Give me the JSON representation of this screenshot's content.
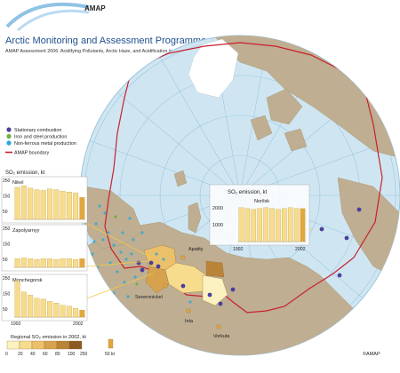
{
  "header": {
    "logo_text": "AMAP",
    "title": "Arctic Monitoring and Assessment Programme",
    "subtitle": "AMAP Assessment 2006: Acidifying Pollutants, Arctic Haze, and Acidification in the Arctic, Figure 2.2"
  },
  "legend": {
    "items": [
      {
        "label": "Stationary combustion",
        "color": "#4b3f9e"
      },
      {
        "label": "Iron and steel production",
        "color": "#6db33f"
      },
      {
        "label": "Non-ferrous metal production",
        "color": "#2aa7d8"
      }
    ],
    "boundary_label": "AMAP boundary",
    "boundary_color": "#c8202f"
  },
  "charts_heading": "SO₂ emission, kt",
  "charts": [
    {
      "name": "Nikel",
      "y_ticks": [
        "250",
        "150",
        "50"
      ],
      "ymax": 250,
      "values": [
        205,
        215,
        200,
        190,
        185,
        195,
        190,
        180,
        175,
        170,
        140
      ]
    },
    {
      "name": "Zapolyarnyy",
      "y_ticks": [
        "250",
        "150",
        "50"
      ],
      "ymax": 250,
      "values": [
        55,
        60,
        55,
        50,
        55,
        55,
        50,
        55,
        55,
        50,
        55
      ]
    },
    {
      "name": "Monchegorsk",
      "y_ticks": [
        "250",
        "150",
        "50"
      ],
      "ymax": 250,
      "values": [
        230,
        160,
        140,
        120,
        115,
        100,
        90,
        75,
        70,
        55,
        45
      ]
    }
  ],
  "chart_x_labels": [
    "1992",
    "2002"
  ],
  "norilsk": {
    "heading": "SO₂ emission, kt",
    "name": "Norilsk",
    "y_ticks": [
      "2000",
      "1000"
    ],
    "ymax": 2200,
    "values": [
      2000,
      1950,
      1900,
      1950,
      2000,
      1950,
      1900,
      1950,
      2000,
      1950,
      1950
    ],
    "x_labels": [
      "1992",
      "2002"
    ]
  },
  "places": [
    "Apatity",
    "Severonickel",
    "Inta",
    "Vorkuta"
  ],
  "scale": {
    "title": "Regional SO₂ emission in 2002, kt",
    "ticks": [
      "0",
      "20",
      "40",
      "60",
      "80",
      "100",
      "250"
    ],
    "colors": [
      "#fbf2c0",
      "#f6dc8c",
      "#eac06a",
      "#d7a24e",
      "#b98338",
      "#8c5a20"
    ],
    "bar_label": "50 kt"
  },
  "copyright": "©AMAP"
}
